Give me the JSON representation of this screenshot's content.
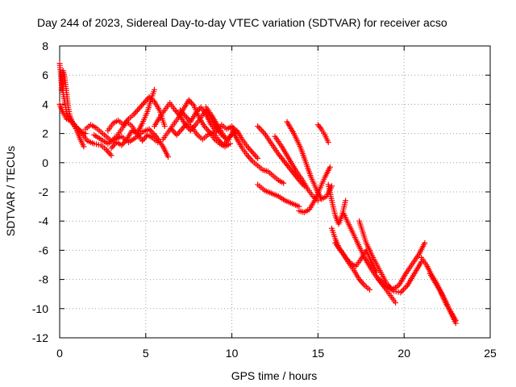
{
  "chart_data": {
    "type": "scatter",
    "title": "Day 244 of 2023, Sidereal Day-to-day VTEC variation (SDTVAR) for receiver acso",
    "xlabel": "GPS time / hours",
    "ylabel": "SDTVAR / TECUs",
    "xlim": [
      0,
      25
    ],
    "ylim": [
      -12,
      8
    ],
    "x_ticks": [
      0,
      5,
      10,
      15,
      20,
      25
    ],
    "y_ticks": [
      -12,
      -10,
      -8,
      -6,
      -4,
      -2,
      0,
      2,
      4,
      6,
      8
    ],
    "grid": true,
    "marker": "+",
    "series": [
      {
        "name": "SDTVAR",
        "color": "#ff0000",
        "tracks": [
          {
            "x": [
              0.0,
              0.1,
              0.2,
              0.3,
              0.4,
              0.5,
              0.7,
              0.9,
              1.1,
              1.3,
              1.5
            ],
            "y": [
              6.8,
              5.5,
              4.8,
              4.1,
              3.5,
              3.1,
              2.8,
              2.5,
              2.3,
              2.1,
              2.0
            ]
          },
          {
            "x": [
              0.1,
              0.2,
              0.3,
              0.4,
              0.5,
              0.6,
              0.8,
              1.0,
              1.2,
              1.4
            ],
            "y": [
              5.0,
              6.3,
              5.8,
              4.8,
              3.8,
              3.2,
              2.6,
              2.2,
              1.6,
              1.1
            ]
          },
          {
            "x": [
              0.0,
              0.2,
              0.4,
              0.6,
              0.8,
              1.0,
              1.3,
              1.6,
              2.0,
              2.4,
              2.7,
              3.0
            ],
            "y": [
              4.0,
              3.4,
              3.0,
              2.9,
              2.7,
              2.4,
              2.0,
              1.5,
              1.3,
              1.2,
              0.9,
              0.5
            ]
          },
          {
            "x": [
              1.5,
              1.8,
              2.1,
              2.4,
              2.7,
              3.0,
              3.3,
              3.6,
              3.9,
              4.2,
              4.5,
              4.8,
              5.1,
              5.3,
              5.5
            ],
            "y": [
              2.3,
              2.6,
              2.4,
              2.1,
              1.8,
              1.5,
              1.8,
              2.3,
              2.8,
              2.5,
              2.0,
              2.7,
              3.5,
              4.3,
              5.0
            ]
          },
          {
            "x": [
              2.8,
              3.1,
              3.4,
              3.7,
              4.0,
              4.3,
              4.6,
              4.9,
              5.2,
              5.5,
              5.8,
              6.1
            ],
            "y": [
              2.2,
              2.7,
              2.9,
              2.6,
              3.0,
              3.3,
              3.7,
              4.1,
              4.5,
              4.2,
              3.6,
              2.5
            ]
          },
          {
            "x": [
              2.0,
              2.4,
              2.8,
              3.2,
              3.6,
              4.0,
              4.4,
              4.8,
              5.2,
              5.6,
              6.0,
              6.3
            ],
            "y": [
              1.9,
              1.6,
              1.3,
              1.6,
              1.8,
              1.4,
              1.7,
              2.1,
              2.3,
              1.8,
              1.1,
              0.4
            ]
          },
          {
            "x": [
              3.0,
              3.3,
              3.6,
              3.9,
              4.2,
              4.5,
              4.8,
              5.1,
              5.4,
              5.7
            ],
            "y": [
              1.0,
              1.4,
              1.2,
              1.6,
              2.2,
              2.0,
              1.5,
              1.9,
              1.7,
              1.4
            ]
          },
          {
            "x": [
              5.5,
              5.8,
              6.1,
              6.4,
              6.7,
              7.0,
              7.3,
              7.6,
              7.9,
              8.2,
              8.5,
              8.8,
              9.1,
              9.4,
              9.7
            ],
            "y": [
              2.5,
              3.1,
              3.6,
              4.1,
              3.6,
              3.2,
              2.6,
              2.2,
              2.6,
              3.1,
              3.6,
              3.1,
              2.4,
              1.9,
              1.6
            ]
          },
          {
            "x": [
              6.0,
              6.3,
              6.6,
              6.9,
              7.2,
              7.5,
              7.8,
              8.1,
              8.4,
              8.7,
              9.0,
              9.3,
              9.6,
              9.9
            ],
            "y": [
              1.6,
              2.1,
              2.6,
              3.1,
              3.7,
              4.3,
              3.9,
              3.1,
              2.5,
              2.1,
              1.6,
              1.3,
              1.1,
              1.3
            ]
          },
          {
            "x": [
              6.5,
              6.8,
              7.1,
              7.4,
              7.7,
              8.0,
              8.3,
              8.6,
              8.9,
              9.2,
              9.5,
              9.8,
              10.1
            ],
            "y": [
              2.3,
              1.9,
              2.3,
              2.7,
              2.4,
              1.9,
              1.6,
              1.9,
              2.1,
              1.6,
              1.2,
              1.6,
              2.2
            ]
          },
          {
            "x": [
              7.0,
              7.3,
              7.6,
              7.9,
              8.2,
              8.5,
              8.8,
              9.1,
              9.4,
              9.7,
              10.0,
              10.3
            ],
            "y": [
              3.6,
              3.2,
              2.8,
              3.4,
              3.8,
              3.3,
              2.6,
              2.1,
              2.6,
              2.3,
              2.5,
              2.1
            ]
          },
          {
            "x": [
              8.5,
              8.8,
              9.1,
              9.4,
              9.7,
              10.0,
              10.3,
              10.6,
              10.9,
              11.2,
              11.5
            ],
            "y": [
              3.8,
              3.3,
              2.7,
              2.1,
              1.6,
              1.9,
              2.2,
              1.6,
              1.1,
              0.7,
              0.3
            ]
          },
          {
            "x": [
              10.0,
              10.3,
              10.6,
              10.9,
              11.2,
              11.5,
              11.8,
              12.1,
              12.4,
              12.7,
              13.0
            ],
            "y": [
              2.3,
              1.6,
              1.0,
              0.5,
              0.1,
              -0.2,
              -0.5,
              -0.6,
              -0.9,
              -1.2,
              -1.4
            ]
          },
          {
            "x": [
              11.5,
              11.9,
              12.3,
              12.7,
              13.1,
              13.5,
              13.9,
              14.2
            ],
            "y": [
              2.5,
              2.0,
              1.3,
              0.6,
              0.0,
              -0.6,
              -1.2,
              -1.6
            ]
          },
          {
            "x": [
              12.5,
              12.9,
              13.3,
              13.7,
              14.1,
              14.4,
              14.7,
              15.0
            ],
            "y": [
              1.8,
              1.1,
              0.3,
              -0.5,
              -1.2,
              -1.8,
              -2.3,
              -2.6
            ]
          },
          {
            "x": [
              11.5,
              11.9,
              12.3,
              12.7,
              13.1,
              13.5,
              13.9
            ],
            "y": [
              -1.5,
              -1.9,
              -2.1,
              -2.3,
              -2.6,
              -2.8,
              -3.0
            ]
          },
          {
            "x": [
              13.2,
              13.6,
              14.0,
              14.3,
              14.6,
              14.9,
              15.2,
              15.5,
              15.8
            ],
            "y": [
              2.8,
              2.0,
              1.0,
              0.0,
              -1.0,
              -1.8,
              -2.5,
              -2.3,
              -1.6
            ]
          },
          {
            "x": [
              13.9,
              14.2,
              14.5,
              14.8,
              15.1,
              15.4,
              15.7
            ],
            "y": [
              -3.3,
              -3.4,
              -3.2,
              -2.6,
              -1.8,
              -1.0,
              -0.3
            ]
          },
          {
            "x": [
              15.0,
              15.2,
              15.4,
              15.6
            ],
            "y": [
              2.6,
              2.3,
              1.9,
              1.4
            ]
          },
          {
            "x": [
              15.6,
              15.8,
              16.0,
              16.2,
              16.4,
              16.6
            ],
            "y": [
              -1.5,
              -2.6,
              -3.6,
              -4.2,
              -3.6,
              -2.6
            ]
          },
          {
            "x": [
              15.8,
              16.0,
              16.2,
              16.5,
              16.8,
              17.1,
              17.4,
              17.7,
              18.0
            ],
            "y": [
              -4.5,
              -5.2,
              -5.8,
              -6.3,
              -6.9,
              -7.4,
              -8.0,
              -8.4,
              -8.7
            ]
          },
          {
            "x": [
              16.0,
              16.3,
              16.6,
              16.9,
              17.2,
              17.5,
              17.8,
              18.1,
              18.4
            ],
            "y": [
              -5.5,
              -6.0,
              -6.5,
              -6.9,
              -7.1,
              -6.6,
              -6.0,
              -6.8,
              -7.5
            ]
          },
          {
            "x": [
              16.5,
              16.9,
              17.3,
              17.7,
              18.1,
              18.5,
              18.9,
              19.2,
              19.5
            ],
            "y": [
              -3.5,
              -4.5,
              -5.5,
              -6.5,
              -7.3,
              -8.0,
              -8.6,
              -9.1,
              -9.6
            ]
          },
          {
            "x": [
              17.4,
              17.8,
              18.2,
              18.6,
              19.0,
              19.4,
              19.8,
              20.2,
              20.6,
              21.0
            ],
            "y": [
              -4.0,
              -5.5,
              -6.5,
              -7.4,
              -8.3,
              -8.8,
              -8.9,
              -8.4,
              -7.6,
              -6.8
            ]
          },
          {
            "x": [
              18.5,
              18.9,
              19.3,
              19.7,
              20.1,
              20.5,
              20.9,
              21.2
            ],
            "y": [
              -7.9,
              -8.4,
              -8.7,
              -8.4,
              -7.6,
              -6.9,
              -6.2,
              -5.5
            ]
          },
          {
            "x": [
              21.0,
              21.3,
              21.6,
              21.9,
              22.2,
              22.5,
              22.8,
              23.0
            ],
            "y": [
              -6.5,
              -7.0,
              -7.7,
              -8.3,
              -9.0,
              -9.7,
              -10.5,
              -11.0
            ]
          },
          {
            "x": [
              21.5,
              21.8,
              22.1,
              22.4,
              22.7,
              23.0
            ],
            "y": [
              -7.6,
              -8.2,
              -8.8,
              -9.6,
              -10.2,
              -10.8
            ]
          }
        ]
      }
    ]
  }
}
